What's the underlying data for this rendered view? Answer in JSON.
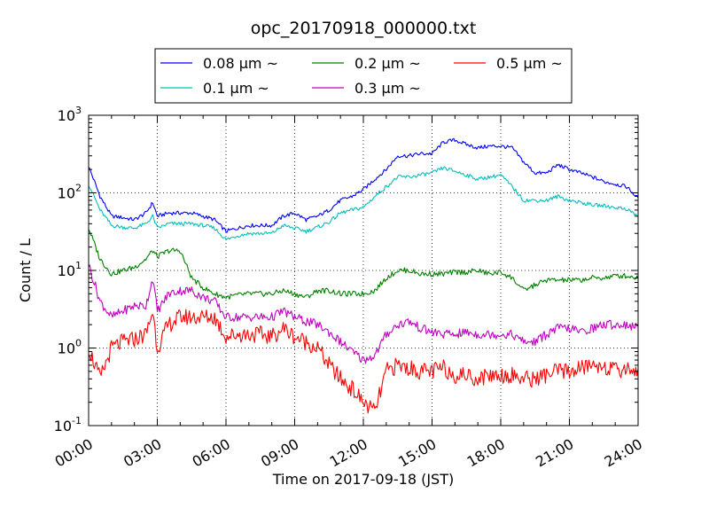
{
  "chart_data": {
    "type": "line",
    "title": "opc_20170918_000000.txt",
    "xlabel": "Time on 2017-09-18 (JST)",
    "ylabel": "Count / L",
    "y_scale": "log",
    "ylim": [
      0.1,
      1000
    ],
    "xlim": [
      "00:00",
      "24:00"
    ],
    "x_ticks": [
      "00:00",
      "03:00",
      "06:00",
      "09:00",
      "12:00",
      "15:00",
      "18:00",
      "21:00",
      "24:00"
    ],
    "y_ticks": [
      {
        "base": "10",
        "exp": "-1"
      },
      {
        "base": "10",
        "exp": "0"
      },
      {
        "base": "10",
        "exp": "1"
      },
      {
        "base": "10",
        "exp": "2"
      },
      {
        "base": "10",
        "exp": "3"
      }
    ],
    "grid": true,
    "legend": "top, outside plot, 3 columns",
    "x_hours": [
      0,
      0.5,
      1,
      1.5,
      2,
      2.5,
      2.8,
      3,
      3.5,
      4,
      4.5,
      5,
      5.5,
      6,
      6.5,
      7,
      7.5,
      8,
      8.5,
      9,
      9.5,
      10,
      10.5,
      11,
      11.5,
      12,
      12.5,
      13,
      13.5,
      14,
      14.5,
      15,
      15.5,
      16,
      16.5,
      17,
      17.5,
      18,
      18.5,
      19,
      19.5,
      20,
      20.5,
      21,
      21.5,
      22,
      22.5,
      23,
      23.5,
      24
    ],
    "series": [
      {
        "name": "0.08 μm ~",
        "color": "#0000ff",
        "values": [
          220,
          90,
          50,
          48,
          45,
          55,
          75,
          50,
          55,
          55,
          55,
          50,
          45,
          32,
          35,
          38,
          38,
          38,
          50,
          55,
          45,
          50,
          60,
          80,
          90,
          110,
          150,
          200,
          300,
          300,
          320,
          320,
          450,
          480,
          420,
          380,
          400,
          400,
          380,
          250,
          180,
          180,
          230,
          200,
          180,
          160,
          140,
          130,
          120,
          85
        ]
      },
      {
        "name": "0.1 μm ~",
        "color": "#00bfbf",
        "values": [
          130,
          60,
          38,
          36,
          35,
          40,
          50,
          35,
          40,
          40,
          40,
          38,
          35,
          25,
          28,
          30,
          30,
          30,
          38,
          35,
          32,
          36,
          42,
          55,
          60,
          65,
          90,
          120,
          160,
          160,
          170,
          180,
          210,
          190,
          170,
          150,
          160,
          170,
          120,
          80,
          80,
          80,
          90,
          80,
          75,
          70,
          68,
          65,
          62,
          50
        ]
      },
      {
        "name": "0.2 μm ~",
        "color": "#008000",
        "values": [
          35,
          14,
          9,
          10,
          11,
          14,
          18,
          15,
          18,
          18,
          8,
          6,
          5,
          4.5,
          4.8,
          5,
          5,
          5,
          5.5,
          5,
          4.5,
          5.5,
          5.5,
          5,
          5,
          5,
          5.5,
          8,
          10,
          10,
          9,
          9,
          9,
          9.5,
          9.5,
          10,
          9,
          9.5,
          8,
          5.5,
          6.5,
          7.5,
          7.5,
          7.5,
          7.5,
          8,
          8,
          8.5,
          8.5,
          8
        ]
      },
      {
        "name": "0.3 μm ~",
        "color": "#bf00bf",
        "values": [
          12,
          4,
          2.5,
          3,
          3.5,
          3.5,
          8,
          3,
          5,
          5.5,
          5.5,
          4.5,
          4,
          2.5,
          2.5,
          2.5,
          2.5,
          2.5,
          3,
          2.5,
          2.2,
          2,
          1.6,
          1.2,
          0.9,
          0.7,
          0.8,
          1.5,
          2,
          2.2,
          1.8,
          1.6,
          1.5,
          1.5,
          1.6,
          1.5,
          1.5,
          1.5,
          1.5,
          1.2,
          1.2,
          1.5,
          1.8,
          1.8,
          1.6,
          1.8,
          2,
          2,
          2,
          1.8
        ]
      },
      {
        "name": "0.5 μm ~",
        "color": "#ff0000",
        "values": [
          1,
          0.4,
          1,
          1.2,
          1.3,
          1.5,
          3,
          1,
          2,
          2.5,
          2.5,
          2.5,
          2.5,
          1.4,
          1.5,
          1.5,
          1.5,
          1.4,
          1.8,
          1.4,
          1.2,
          1,
          0.6,
          0.4,
          0.3,
          0.2,
          0.15,
          0.5,
          0.6,
          0.55,
          0.5,
          0.5,
          0.55,
          0.45,
          0.45,
          0.4,
          0.45,
          0.45,
          0.45,
          0.4,
          0.4,
          0.45,
          0.5,
          0.5,
          0.55,
          0.6,
          0.6,
          0.5,
          0.55,
          0.5
        ]
      }
    ]
  }
}
